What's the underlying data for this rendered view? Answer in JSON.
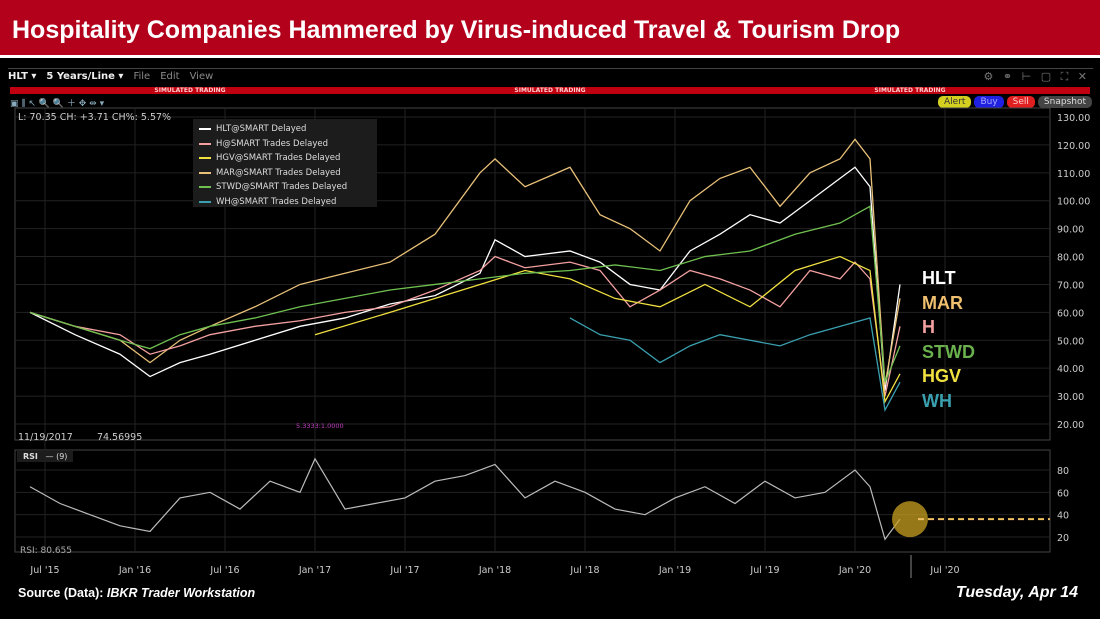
{
  "header": {
    "title": "Hospitality Companies Hammered by Virus-induced Travel & Tourism Drop"
  },
  "toolbar": {
    "symbol": "HLT ▾",
    "period": "5 Years/Line ▾",
    "menu": [
      "File",
      "Edit",
      "View"
    ],
    "sim_label": "SIMULATED TRADING",
    "tools": "▣ ⫼ ↖ 🔍 🔍 ＋ ✥ ⇹ ▾",
    "window_icons": "⚙ ⚭ ⊢ ▢ ⛶ ✕",
    "buttons": [
      {
        "label": "Alert",
        "color": "#d4d020"
      },
      {
        "label": "Buy",
        "color": "#2020e0"
      },
      {
        "label": "Sell",
        "color": "#e02020"
      },
      {
        "label": "Snapshot",
        "color": "#444444"
      }
    ]
  },
  "readout": "L: 70.35 CH: +3.71 CH%: 5.57%",
  "crosshair": {
    "date": "11/19/2017",
    "value": "74.56995"
  },
  "marker": "5.3333:1.0000",
  "rsi": {
    "label": "RSI",
    "param": "— (9)",
    "value": "RSI: 80.655"
  },
  "footer": {
    "source_label": "Source (Data):",
    "source": "IBKR Trader Workstation",
    "date": "Tuesday, Apr 14"
  },
  "chart_data": [
    {
      "type": "line",
      "ylim": [
        20,
        130
      ],
      "yticks": [
        "130.00",
        "120.00",
        "110.00",
        "100.00",
        "90.00",
        "80.00",
        "70.00",
        "60.00",
        "50.00",
        "40.00",
        "30.00",
        "20.00"
      ],
      "xticks": [
        "Jul '15",
        "Jan '16",
        "Jul '16",
        "Jan '17",
        "Jul '17",
        "Jan '18",
        "Jul '18",
        "Jan '19",
        "Jul '19",
        "Jan '20",
        "Jul '20"
      ],
      "legend": [
        "HLT@SMART Delayed",
        "H@SMART Trades Delayed",
        "HGV@SMART Trades Delayed",
        "MAR@SMART Trades Delayed",
        "STWD@SMART Trades Delayed",
        "WH@SMART Trades Delayed"
      ],
      "series": [
        {
          "name": "HLT",
          "color": "#ffffff",
          "x": [
            "2015-06",
            "2015-09",
            "2015-12",
            "2016-02",
            "2016-04",
            "2016-06",
            "2016-09",
            "2016-12",
            "2017-03",
            "2017-06",
            "2017-09",
            "2017-12",
            "2018-01",
            "2018-03",
            "2018-06",
            "2018-08",
            "2018-10",
            "2018-12",
            "2019-02",
            "2019-04",
            "2019-06",
            "2019-08",
            "2019-10",
            "2019-12",
            "2020-01",
            "2020-02",
            "2020-03",
            "2020-04"
          ],
          "y": [
            60,
            52,
            45,
            37,
            42,
            45,
            50,
            55,
            58,
            63,
            66,
            74,
            86,
            80,
            82,
            78,
            70,
            68,
            82,
            88,
            95,
            92,
            100,
            108,
            112,
            105,
            32,
            70
          ]
        },
        {
          "name": "MAR",
          "color": "#e8c078",
          "x": [
            "2015-06",
            "2015-09",
            "2015-12",
            "2016-02",
            "2016-04",
            "2016-06",
            "2016-09",
            "2016-12",
            "2017-03",
            "2017-06",
            "2017-09",
            "2017-12",
            "2018-01",
            "2018-03",
            "2018-06",
            "2018-08",
            "2018-10",
            "2018-12",
            "2019-02",
            "2019-04",
            "2019-06",
            "2019-08",
            "2019-10",
            "2019-12",
            "2020-01",
            "2020-02",
            "2020-03",
            "2020-04"
          ],
          "y": [
            60,
            55,
            50,
            42,
            50,
            55,
            62,
            70,
            74,
            78,
            88,
            110,
            115,
            105,
            112,
            95,
            90,
            82,
            100,
            108,
            112,
            98,
            110,
            115,
            122,
            115,
            34,
            65
          ]
        },
        {
          "name": "H",
          "color": "#f4a0a0",
          "x": [
            "2015-06",
            "2015-09",
            "2015-12",
            "2016-02",
            "2016-04",
            "2016-06",
            "2016-09",
            "2016-12",
            "2017-03",
            "2017-06",
            "2017-09",
            "2017-12",
            "2018-01",
            "2018-03",
            "2018-06",
            "2018-08",
            "2018-10",
            "2018-12",
            "2019-02",
            "2019-04",
            "2019-06",
            "2019-08",
            "2019-10",
            "2019-12",
            "2020-01",
            "2020-02",
            "2020-03",
            "2020-04"
          ],
          "y": [
            60,
            55,
            52,
            45,
            48,
            52,
            55,
            57,
            60,
            62,
            68,
            75,
            80,
            76,
            78,
            75,
            62,
            68,
            75,
            72,
            68,
            62,
            75,
            72,
            78,
            72,
            30,
            55
          ]
        },
        {
          "name": "HGV",
          "color": "#f0e040",
          "x": [
            "2017-01",
            "2017-06",
            "2017-12",
            "2018-03",
            "2018-06",
            "2018-09",
            "2018-12",
            "2019-03",
            "2019-06",
            "2019-09",
            "2019-12",
            "2020-02",
            "2020-03",
            "2020-04"
          ],
          "y": [
            52,
            60,
            70,
            75,
            72,
            65,
            62,
            70,
            62,
            75,
            80,
            75,
            28,
            38
          ]
        },
        {
          "name": "STWD",
          "color": "#70c050",
          "x": [
            "2015-06",
            "2015-09",
            "2015-12",
            "2016-02",
            "2016-04",
            "2016-06",
            "2016-09",
            "2016-12",
            "2017-03",
            "2017-06",
            "2017-09",
            "2017-12",
            "2018-03",
            "2018-06",
            "2018-09",
            "2018-12",
            "2019-03",
            "2019-06",
            "2019-09",
            "2019-12",
            "2020-02",
            "2020-03",
            "2020-04"
          ],
          "y": [
            60,
            55,
            50,
            47,
            52,
            55,
            58,
            62,
            65,
            68,
            70,
            72,
            74,
            75,
            77,
            75,
            80,
            82,
            88,
            92,
            98,
            35,
            48
          ]
        },
        {
          "name": "WH",
          "color": "#3aa0b0",
          "x": [
            "2018-06",
            "2018-08",
            "2018-10",
            "2018-12",
            "2019-02",
            "2019-04",
            "2019-06",
            "2019-08",
            "2019-10",
            "2019-12",
            "2020-02",
            "2020-03",
            "2020-04"
          ],
          "y": [
            58,
            52,
            50,
            42,
            48,
            52,
            50,
            48,
            52,
            55,
            58,
            25,
            35
          ]
        }
      ],
      "labels": [
        {
          "text": "HLT",
          "color": "#ffffff"
        },
        {
          "text": "MAR",
          "color": "#f0c070"
        },
        {
          "text": "H",
          "color": "#f4a0a0"
        },
        {
          "text": "STWD",
          "color": "#6ab04c"
        },
        {
          "text": "HGV",
          "color": "#f0e040"
        },
        {
          "text": "WH",
          "color": "#3aa0b0"
        }
      ]
    },
    {
      "type": "line",
      "name": "RSI",
      "ylim": [
        0,
        100
      ],
      "yticks": [
        "80",
        "60",
        "40",
        "20"
      ],
      "threshold": 36,
      "highlight_color": "#c8a020",
      "x": [
        "2015-06",
        "2015-08",
        "2015-10",
        "2015-12",
        "2016-02",
        "2016-04",
        "2016-06",
        "2016-08",
        "2016-10",
        "2016-12",
        "2017-01",
        "2017-03",
        "2017-05",
        "2017-07",
        "2017-09",
        "2017-11",
        "2018-01",
        "2018-03",
        "2018-05",
        "2018-07",
        "2018-09",
        "2018-11",
        "2019-01",
        "2019-03",
        "2019-05",
        "2019-07",
        "2019-09",
        "2019-11",
        "2020-01",
        "2020-02",
        "2020-03",
        "2020-04"
      ],
      "y": [
        65,
        50,
        40,
        30,
        25,
        55,
        60,
        45,
        70,
        60,
        90,
        45,
        50,
        55,
        70,
        75,
        85,
        55,
        70,
        60,
        45,
        40,
        55,
        65,
        50,
        70,
        55,
        60,
        80,
        65,
        18,
        36
      ]
    }
  ]
}
